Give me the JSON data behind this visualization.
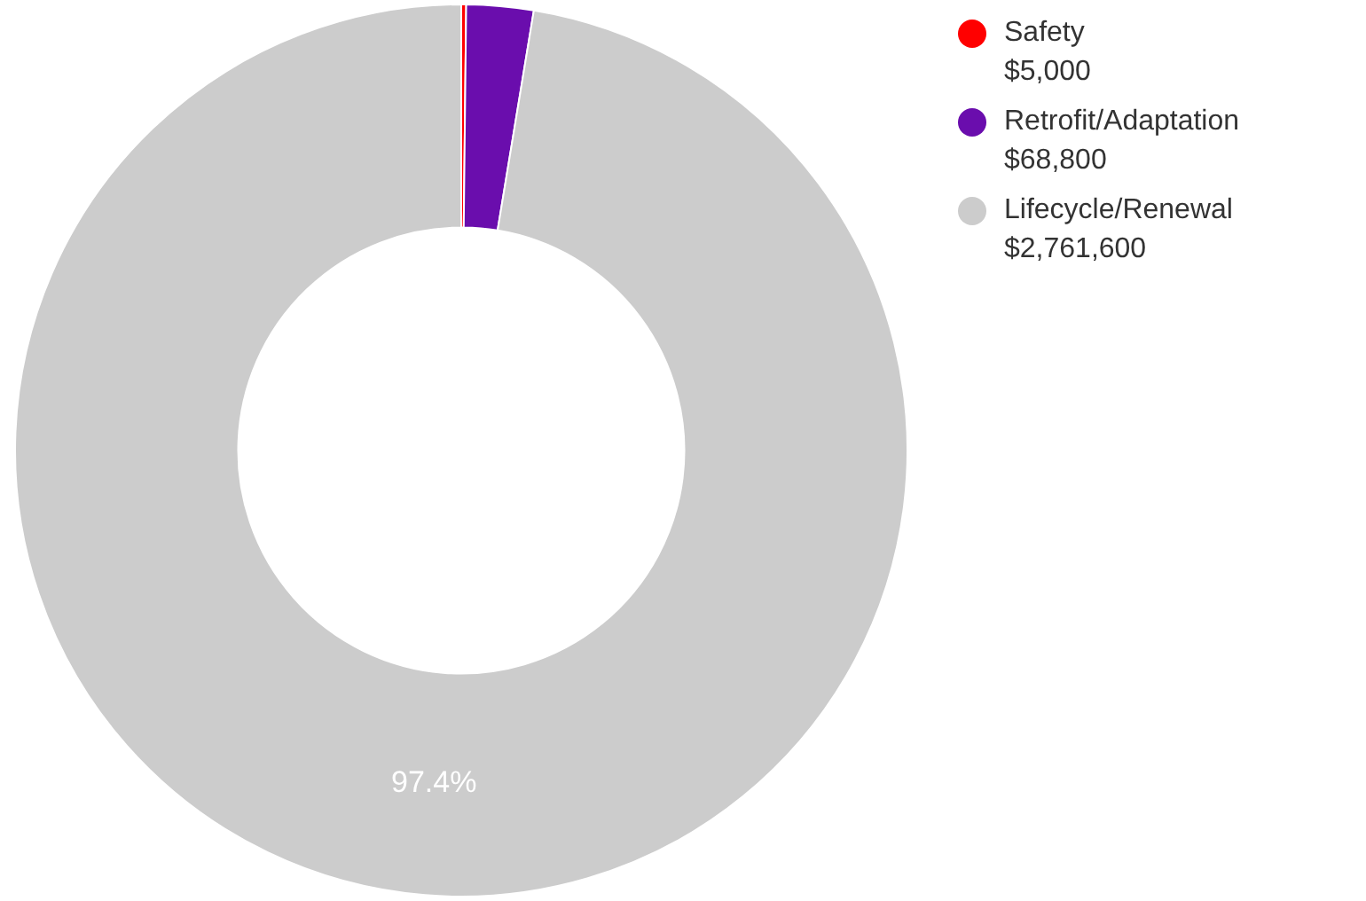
{
  "chart_data": {
    "type": "donut",
    "categories": [
      "Safety",
      "Retrofit/Adaptation",
      "Lifecycle/Renewal"
    ],
    "values": [
      5000,
      68800,
      2761600
    ],
    "colors": [
      "#ff0000",
      "#6a0dad",
      "#cccccc"
    ],
    "value_labels": [
      "$5,000",
      "$68,800",
      "$2,761,600"
    ],
    "annotations": [
      "97.4%"
    ],
    "legend": "right"
  }
}
